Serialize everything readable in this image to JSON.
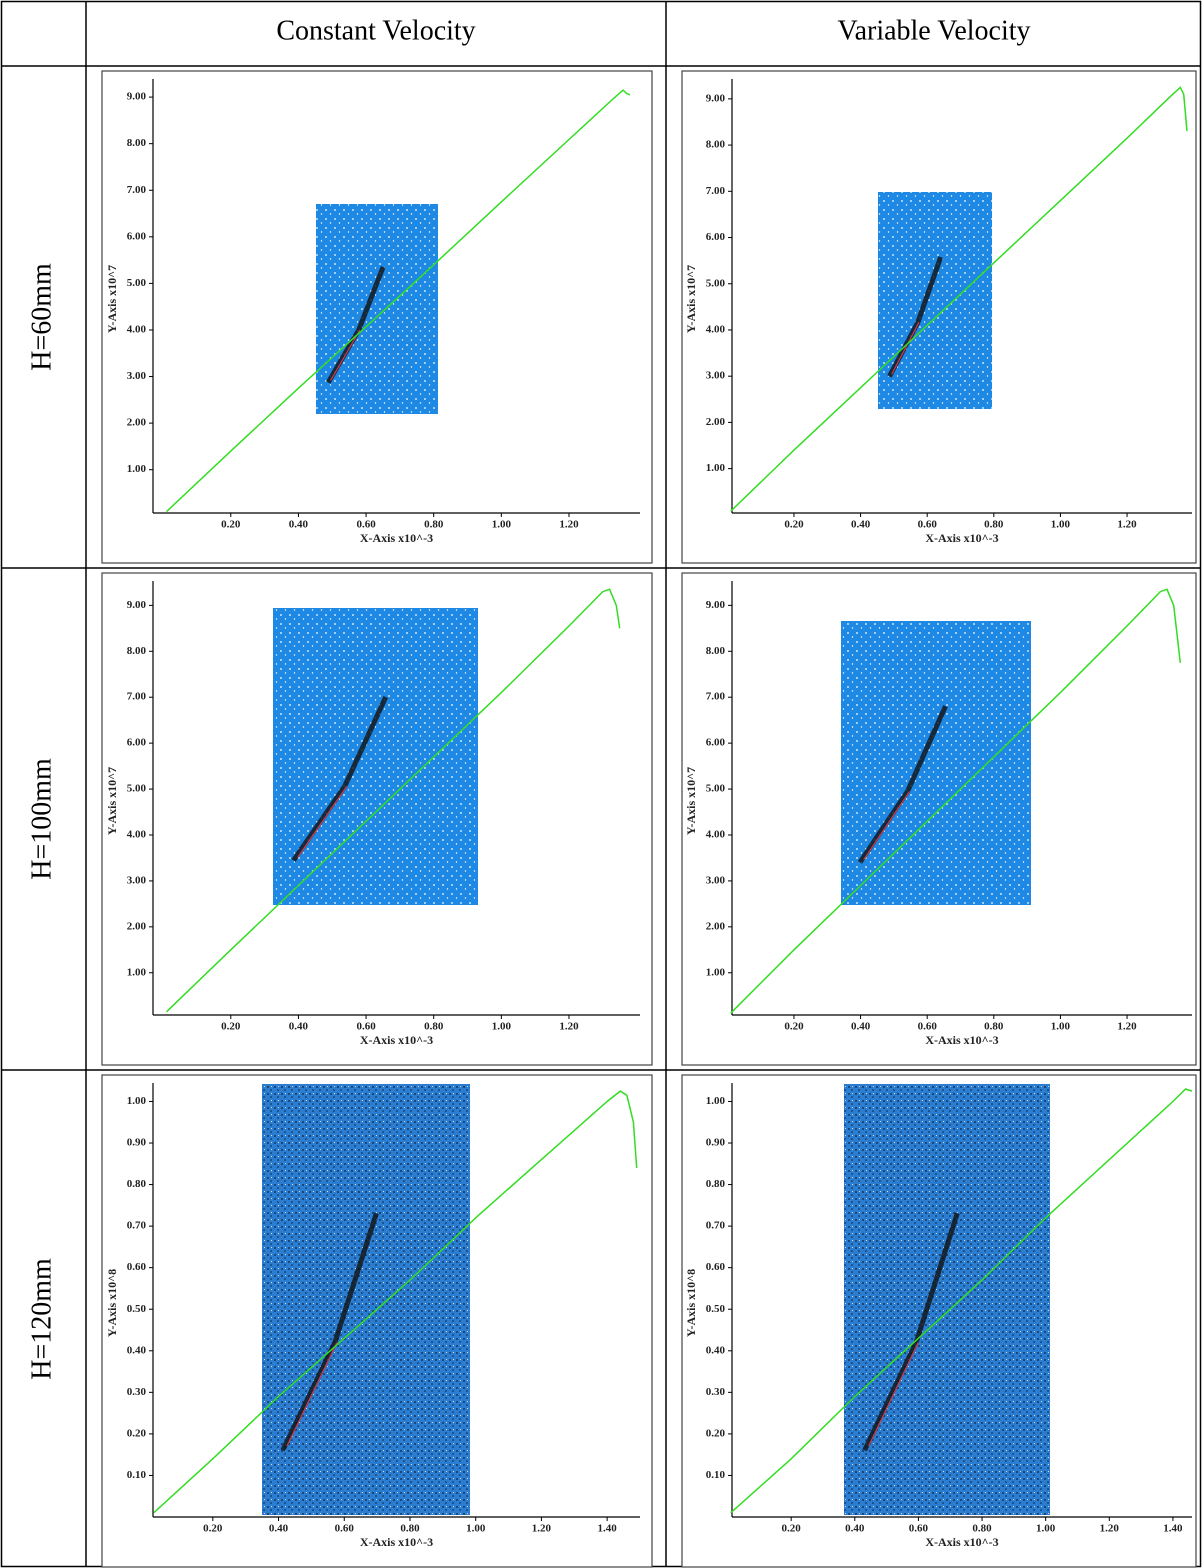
{
  "table": {
    "columns": [
      "Constant Velocity",
      "Variable Velocity"
    ],
    "rows": [
      "H=60mm",
      "H=100mm",
      "H=120mm"
    ]
  },
  "chart_data": [
    {
      "type": "line",
      "x_label": "X-Axis x10^-3",
      "y_label": "Y-Axis x10^7",
      "color": "#33dd22",
      "x": [
        0.01,
        0.2,
        0.4,
        0.6,
        0.8,
        1.0,
        1.2,
        1.33,
        1.36,
        1.37,
        1.38
      ],
      "values": [
        0.1,
        1.4,
        2.75,
        4.07,
        5.4,
        6.75,
        8.09,
        8.96,
        9.15,
        9.08,
        9.05
      ],
      "xlim": [
        -0.03,
        1.41
      ],
      "ylim": [
        0.07,
        9.26
      ],
      "xticks": [
        {
          "value": 0.2,
          "label": "0.20"
        },
        {
          "value": 0.4,
          "label": "0.40"
        },
        {
          "value": 0.6,
          "label": "0.60"
        },
        {
          "value": 0.8,
          "label": "0.80"
        },
        {
          "value": 1,
          "label": "1.00"
        },
        {
          "value": 1.2,
          "label": "1.20"
        }
      ],
      "yticks": [
        {
          "value": 1,
          "label": "1.00"
        },
        {
          "value": 2,
          "label": "2.00"
        },
        {
          "value": 3,
          "label": "3.00"
        },
        {
          "value": 4,
          "label": "4.00"
        },
        {
          "value": 5,
          "label": "5.00"
        },
        {
          "value": 6,
          "label": "6.00"
        },
        {
          "value": 7,
          "label": "7.00"
        },
        {
          "value": 8,
          "label": "8.00"
        },
        {
          "value": 9,
          "label": "9.00"
        }
      ]
    },
    {
      "type": "line",
      "x_label": "X-Axis x10^-3",
      "y_label": "Y-Axis x10^7",
      "color": "#33dd22",
      "x": [
        0.01,
        0.2,
        0.4,
        0.6,
        0.8,
        1.0,
        1.2,
        1.33,
        1.36,
        1.37,
        1.38
      ],
      "values": [
        0.08,
        1.4,
        2.75,
        4.1,
        5.45,
        6.8,
        8.15,
        9.05,
        9.25,
        9.1,
        8.3
      ],
      "xlim": [
        0.014,
        1.395
      ],
      "ylim": [
        0.04,
        9.3
      ],
      "xticks": [
        {
          "value": 0.2,
          "label": "0.20"
        },
        {
          "value": 0.4,
          "label": "0.40"
        },
        {
          "value": 0.6,
          "label": "0.60"
        },
        {
          "value": 0.8,
          "label": "0.80"
        },
        {
          "value": 1,
          "label": "1.00"
        },
        {
          "value": 1.2,
          "label": "1.20"
        }
      ],
      "yticks": [
        {
          "value": 1,
          "label": "1.00"
        },
        {
          "value": 2,
          "label": "2.00"
        },
        {
          "value": 3,
          "label": "3.00"
        },
        {
          "value": 4,
          "label": "4.00"
        },
        {
          "value": 5,
          "label": "5.00"
        },
        {
          "value": 6,
          "label": "6.00"
        },
        {
          "value": 7,
          "label": "7.00"
        },
        {
          "value": 8,
          "label": "8.00"
        },
        {
          "value": 9,
          "label": "9.00"
        }
      ]
    },
    {
      "type": "line",
      "x_label": "X-Axis x10^-3",
      "y_label": "Y-Axis x10^7",
      "color": "#33dd22",
      "x": [
        0.01,
        0.2,
        0.4,
        0.6,
        0.8,
        1.0,
        1.2,
        1.3,
        1.32,
        1.34,
        1.35
      ],
      "values": [
        0.15,
        1.5,
        2.9,
        4.3,
        5.7,
        7.1,
        8.55,
        9.3,
        9.35,
        9.0,
        8.5
      ],
      "xlim": [
        -0.03,
        1.41
      ],
      "ylim": [
        0.08,
        9.4
      ],
      "xticks": [
        {
          "value": 0.2,
          "label": "0.20"
        },
        {
          "value": 0.4,
          "label": "0.40"
        },
        {
          "value": 0.6,
          "label": "0.60"
        },
        {
          "value": 0.8,
          "label": "0.80"
        },
        {
          "value": 1,
          "label": "1.00"
        },
        {
          "value": 1.2,
          "label": "1.20"
        }
      ],
      "yticks": [
        {
          "value": 1,
          "label": "1.00"
        },
        {
          "value": 2,
          "label": "2.00"
        },
        {
          "value": 3,
          "label": "3.00"
        },
        {
          "value": 4,
          "label": "4.00"
        },
        {
          "value": 5,
          "label": "5.00"
        },
        {
          "value": 6,
          "label": "6.00"
        },
        {
          "value": 7,
          "label": "7.00"
        },
        {
          "value": 8,
          "label": "8.00"
        },
        {
          "value": 9,
          "label": "9.00"
        }
      ]
    },
    {
      "type": "line",
      "x_label": "X-Axis x10^-3",
      "y_label": "Y-Axis x10^7",
      "color": "#33dd22",
      "x": [
        0.01,
        0.2,
        0.4,
        0.6,
        0.8,
        1.0,
        1.2,
        1.3,
        1.32,
        1.34,
        1.36
      ],
      "values": [
        0.12,
        1.5,
        2.9,
        4.3,
        5.7,
        7.1,
        8.55,
        9.3,
        9.35,
        9.0,
        7.75
      ],
      "xlim": [
        0.014,
        1.395
      ],
      "ylim": [
        0.08,
        9.4
      ],
      "xticks": [
        {
          "value": 0.2,
          "label": "0.20"
        },
        {
          "value": 0.4,
          "label": "0.40"
        },
        {
          "value": 0.6,
          "label": "0.60"
        },
        {
          "value": 0.8,
          "label": "0.80"
        },
        {
          "value": 1,
          "label": "1.00"
        },
        {
          "value": 1.2,
          "label": "1.20"
        }
      ],
      "yticks": [
        {
          "value": 1,
          "label": "1.00"
        },
        {
          "value": 2,
          "label": "2.00"
        },
        {
          "value": 3,
          "label": "3.00"
        },
        {
          "value": 4,
          "label": "4.00"
        },
        {
          "value": 5,
          "label": "5.00"
        },
        {
          "value": 6,
          "label": "6.00"
        },
        {
          "value": 7,
          "label": "7.00"
        },
        {
          "value": 8,
          "label": "8.00"
        },
        {
          "value": 9,
          "label": "9.00"
        }
      ]
    },
    {
      "type": "line",
      "x_label": "X-Axis x10^-3",
      "y_label": "Y-Axis x10^8",
      "color": "#33dd22",
      "x": [
        0.02,
        0.2,
        0.4,
        0.6,
        0.8,
        1.0,
        1.2,
        1.4,
        1.44,
        1.46,
        1.48,
        1.49
      ],
      "values": [
        0.01,
        0.14,
        0.29,
        0.43,
        0.57,
        0.72,
        0.86,
        1.0,
        1.025,
        1.015,
        0.95,
        0.84
      ],
      "xlim": [
        0.018,
        1.5
      ],
      "ylim": [
        0,
        1.03
      ],
      "xticks": [
        {
          "value": 0.2,
          "label": "0.20"
        },
        {
          "value": 0.4,
          "label": "0.40"
        },
        {
          "value": 0.6,
          "label": "0.60"
        },
        {
          "value": 0.8,
          "label": "0.80"
        },
        {
          "value": 1,
          "label": "1.00"
        },
        {
          "value": 1.2,
          "label": "1.20"
        },
        {
          "value": 1.4,
          "label": "1.40"
        }
      ],
      "yticks": [
        {
          "value": 0.1,
          "label": "0.10"
        },
        {
          "value": 0.2,
          "label": "0.20"
        },
        {
          "value": 0.3,
          "label": "0.30"
        },
        {
          "value": 0.4,
          "label": "0.40"
        },
        {
          "value": 0.5,
          "label": "0.50"
        },
        {
          "value": 0.6,
          "label": "0.60"
        },
        {
          "value": 0.7,
          "label": "0.70"
        },
        {
          "value": 0.8,
          "label": "0.80"
        },
        {
          "value": 0.9,
          "label": "0.90"
        },
        {
          "value": 1,
          "label": "1.00"
        }
      ]
    },
    {
      "type": "line",
      "x_label": "X-Axis x10^-3",
      "y_label": "Y-Axis x10^8",
      "color": "#33dd22",
      "x": [
        0.01,
        0.2,
        0.4,
        0.6,
        0.8,
        1.0,
        1.2,
        1.4,
        1.44,
        1.46
      ],
      "values": [
        0.01,
        0.14,
        0.29,
        0.43,
        0.57,
        0.72,
        0.86,
        1.0,
        1.03,
        1.025
      ],
      "xlim": [
        0.014,
        1.46
      ],
      "ylim": [
        0,
        1.03
      ],
      "xticks": [
        {
          "value": 0.2,
          "label": "0.20"
        },
        {
          "value": 0.4,
          "label": "0.40"
        },
        {
          "value": 0.6,
          "label": "0.60"
        },
        {
          "value": 0.8,
          "label": "0.80"
        },
        {
          "value": 1,
          "label": "1.00"
        },
        {
          "value": 1.2,
          "label": "1.20"
        },
        {
          "value": 1.4,
          "label": "1.40"
        }
      ],
      "yticks": [
        {
          "value": 0.1,
          "label": "0.10"
        },
        {
          "value": 0.2,
          "label": "0.20"
        },
        {
          "value": 0.3,
          "label": "0.30"
        },
        {
          "value": 0.4,
          "label": "0.40"
        },
        {
          "value": 0.5,
          "label": "0.50"
        },
        {
          "value": 0.6,
          "label": "0.60"
        },
        {
          "value": 0.7,
          "label": "0.70"
        },
        {
          "value": 0.8,
          "label": "0.80"
        },
        {
          "value": 0.9,
          "label": "0.90"
        },
        {
          "value": 1,
          "label": "1.00"
        }
      ]
    }
  ]
}
